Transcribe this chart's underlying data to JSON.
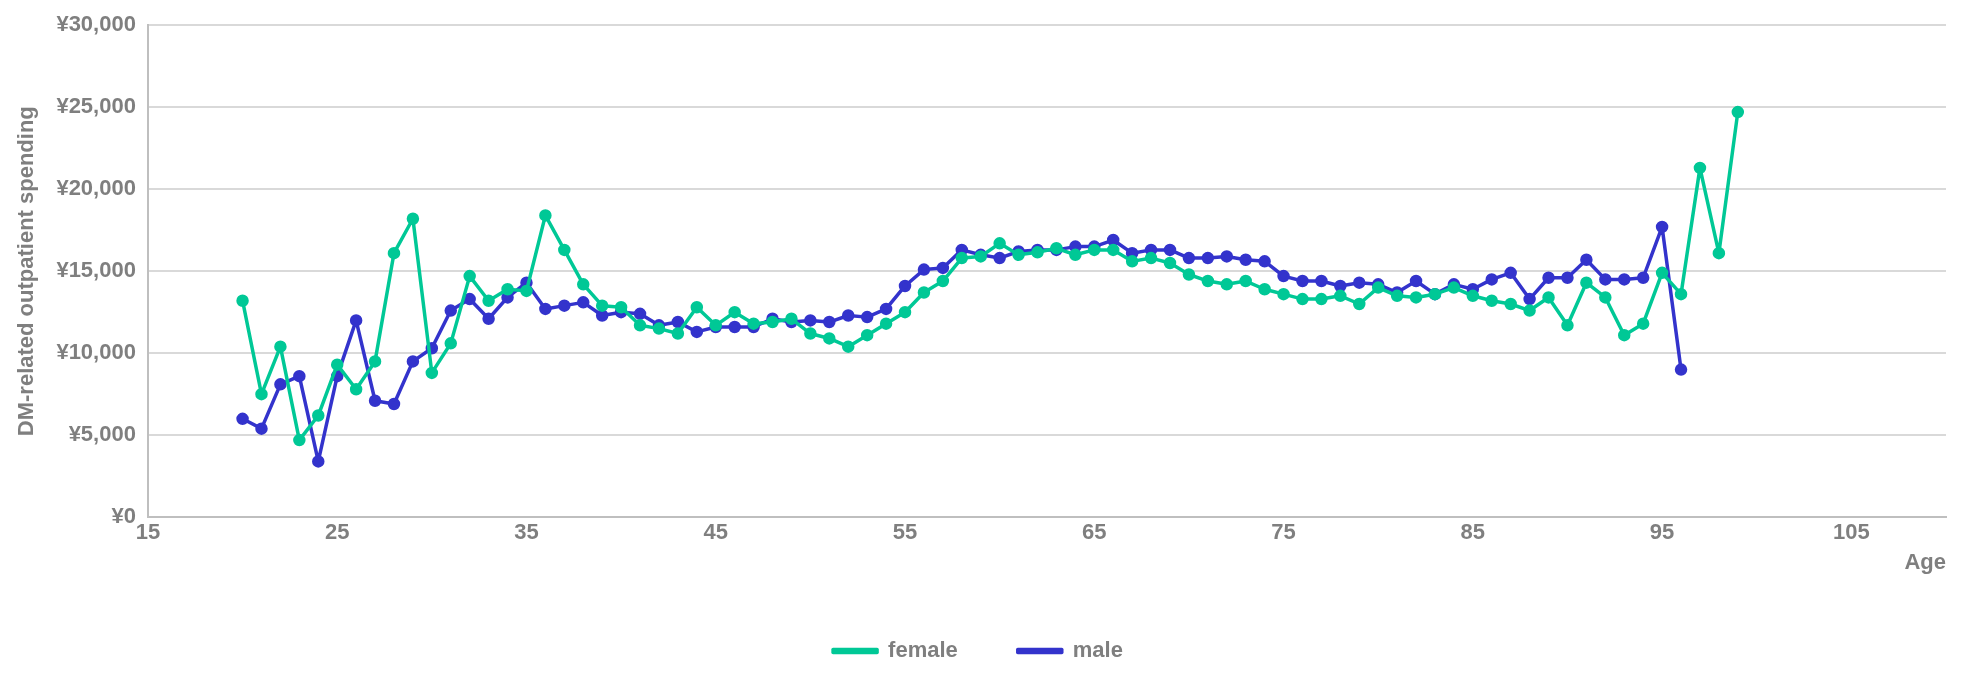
{
  "chart_data": {
    "type": "line",
    "xlabel": "Age",
    "ylabel": "DM-related outpatient spending",
    "x": [
      20,
      21,
      22,
      23,
      24,
      25,
      26,
      27,
      28,
      29,
      30,
      31,
      32,
      33,
      34,
      35,
      36,
      37,
      38,
      39,
      40,
      41,
      42,
      43,
      44,
      45,
      46,
      47,
      48,
      49,
      50,
      51,
      52,
      53,
      54,
      55,
      56,
      57,
      58,
      59,
      60,
      61,
      62,
      63,
      64,
      65,
      66,
      67,
      68,
      69,
      70,
      71,
      72,
      73,
      74,
      75,
      76,
      77,
      78,
      79,
      80,
      81,
      82,
      83,
      84,
      85,
      86,
      87,
      88,
      89,
      90,
      91,
      92,
      93,
      94,
      95,
      96,
      97,
      98,
      99
    ],
    "series": [
      {
        "name": "female",
        "color": "#00c896",
        "values": [
          13200,
          7500,
          10400,
          4700,
          6200,
          9300,
          7800,
          9500,
          16100,
          18200,
          8800,
          10600,
          14700,
          13200,
          13900,
          13800,
          18400,
          16300,
          14200,
          12900,
          12800,
          11700,
          11500,
          11200,
          12800,
          11700,
          12500,
          11800,
          11900,
          12100,
          11200,
          10900,
          10400,
          11100,
          11800,
          12500,
          13700,
          14400,
          15800,
          15900,
          16700,
          16000,
          16150,
          16400,
          16000,
          16300,
          16300,
          15600,
          15800,
          15500,
          14800,
          14400,
          14200,
          14400,
          13900,
          13600,
          13300,
          13300,
          13500,
          13000,
          14000,
          13500,
          13400,
          13600,
          14000,
          13500,
          13200,
          13000,
          12600,
          13400,
          11700,
          14300,
          13400,
          11100,
          11800,
          14900,
          13600,
          21300,
          16100,
          24700
        ]
      },
      {
        "name": "male",
        "color": "#3333cc",
        "values": [
          6000,
          5400,
          8100,
          8600,
          3400,
          8600,
          12000,
          7100,
          6900,
          9500,
          10300,
          12600,
          13300,
          12100,
          13400,
          14300,
          12700,
          12900,
          13100,
          12300,
          12500,
          12400,
          11700,
          11900,
          11300,
          11600,
          11600,
          11600,
          12100,
          11900,
          12000,
          11900,
          12300,
          12200,
          12700,
          14100,
          15100,
          15200,
          16300,
          16000,
          15800,
          16200,
          16300,
          16300,
          16500,
          16500,
          16900,
          16100,
          16300,
          16300,
          15800,
          15800,
          15900,
          15700,
          15600,
          14700,
          14400,
          14400,
          14100,
          14300,
          14200,
          13700,
          14400,
          13600,
          14200,
          13900,
          14500,
          14900,
          13300,
          14600,
          14600,
          15700,
          14500,
          14500,
          14600,
          17700,
          9000,
          null,
          null,
          null
        ]
      }
    ],
    "xlim": [
      15,
      110
    ],
    "xticks": [
      15,
      25,
      35,
      45,
      55,
      65,
      75,
      85,
      95,
      105
    ],
    "ylim": [
      0,
      30000
    ],
    "yticks": [
      {
        "value": 0,
        "label": "¥0"
      },
      {
        "value": 5000,
        "label": "¥5,000"
      },
      {
        "value": 10000,
        "label": "¥10,000"
      },
      {
        "value": 15000,
        "label": "¥15,000"
      },
      {
        "value": 20000,
        "label": "¥20,000"
      },
      {
        "value": 25000,
        "label": "¥25,000"
      },
      {
        "value": 30000,
        "label": "¥30,000"
      }
    ],
    "grid": "y",
    "legend": "bottom",
    "marker": "circle",
    "line_style": "solid"
  }
}
